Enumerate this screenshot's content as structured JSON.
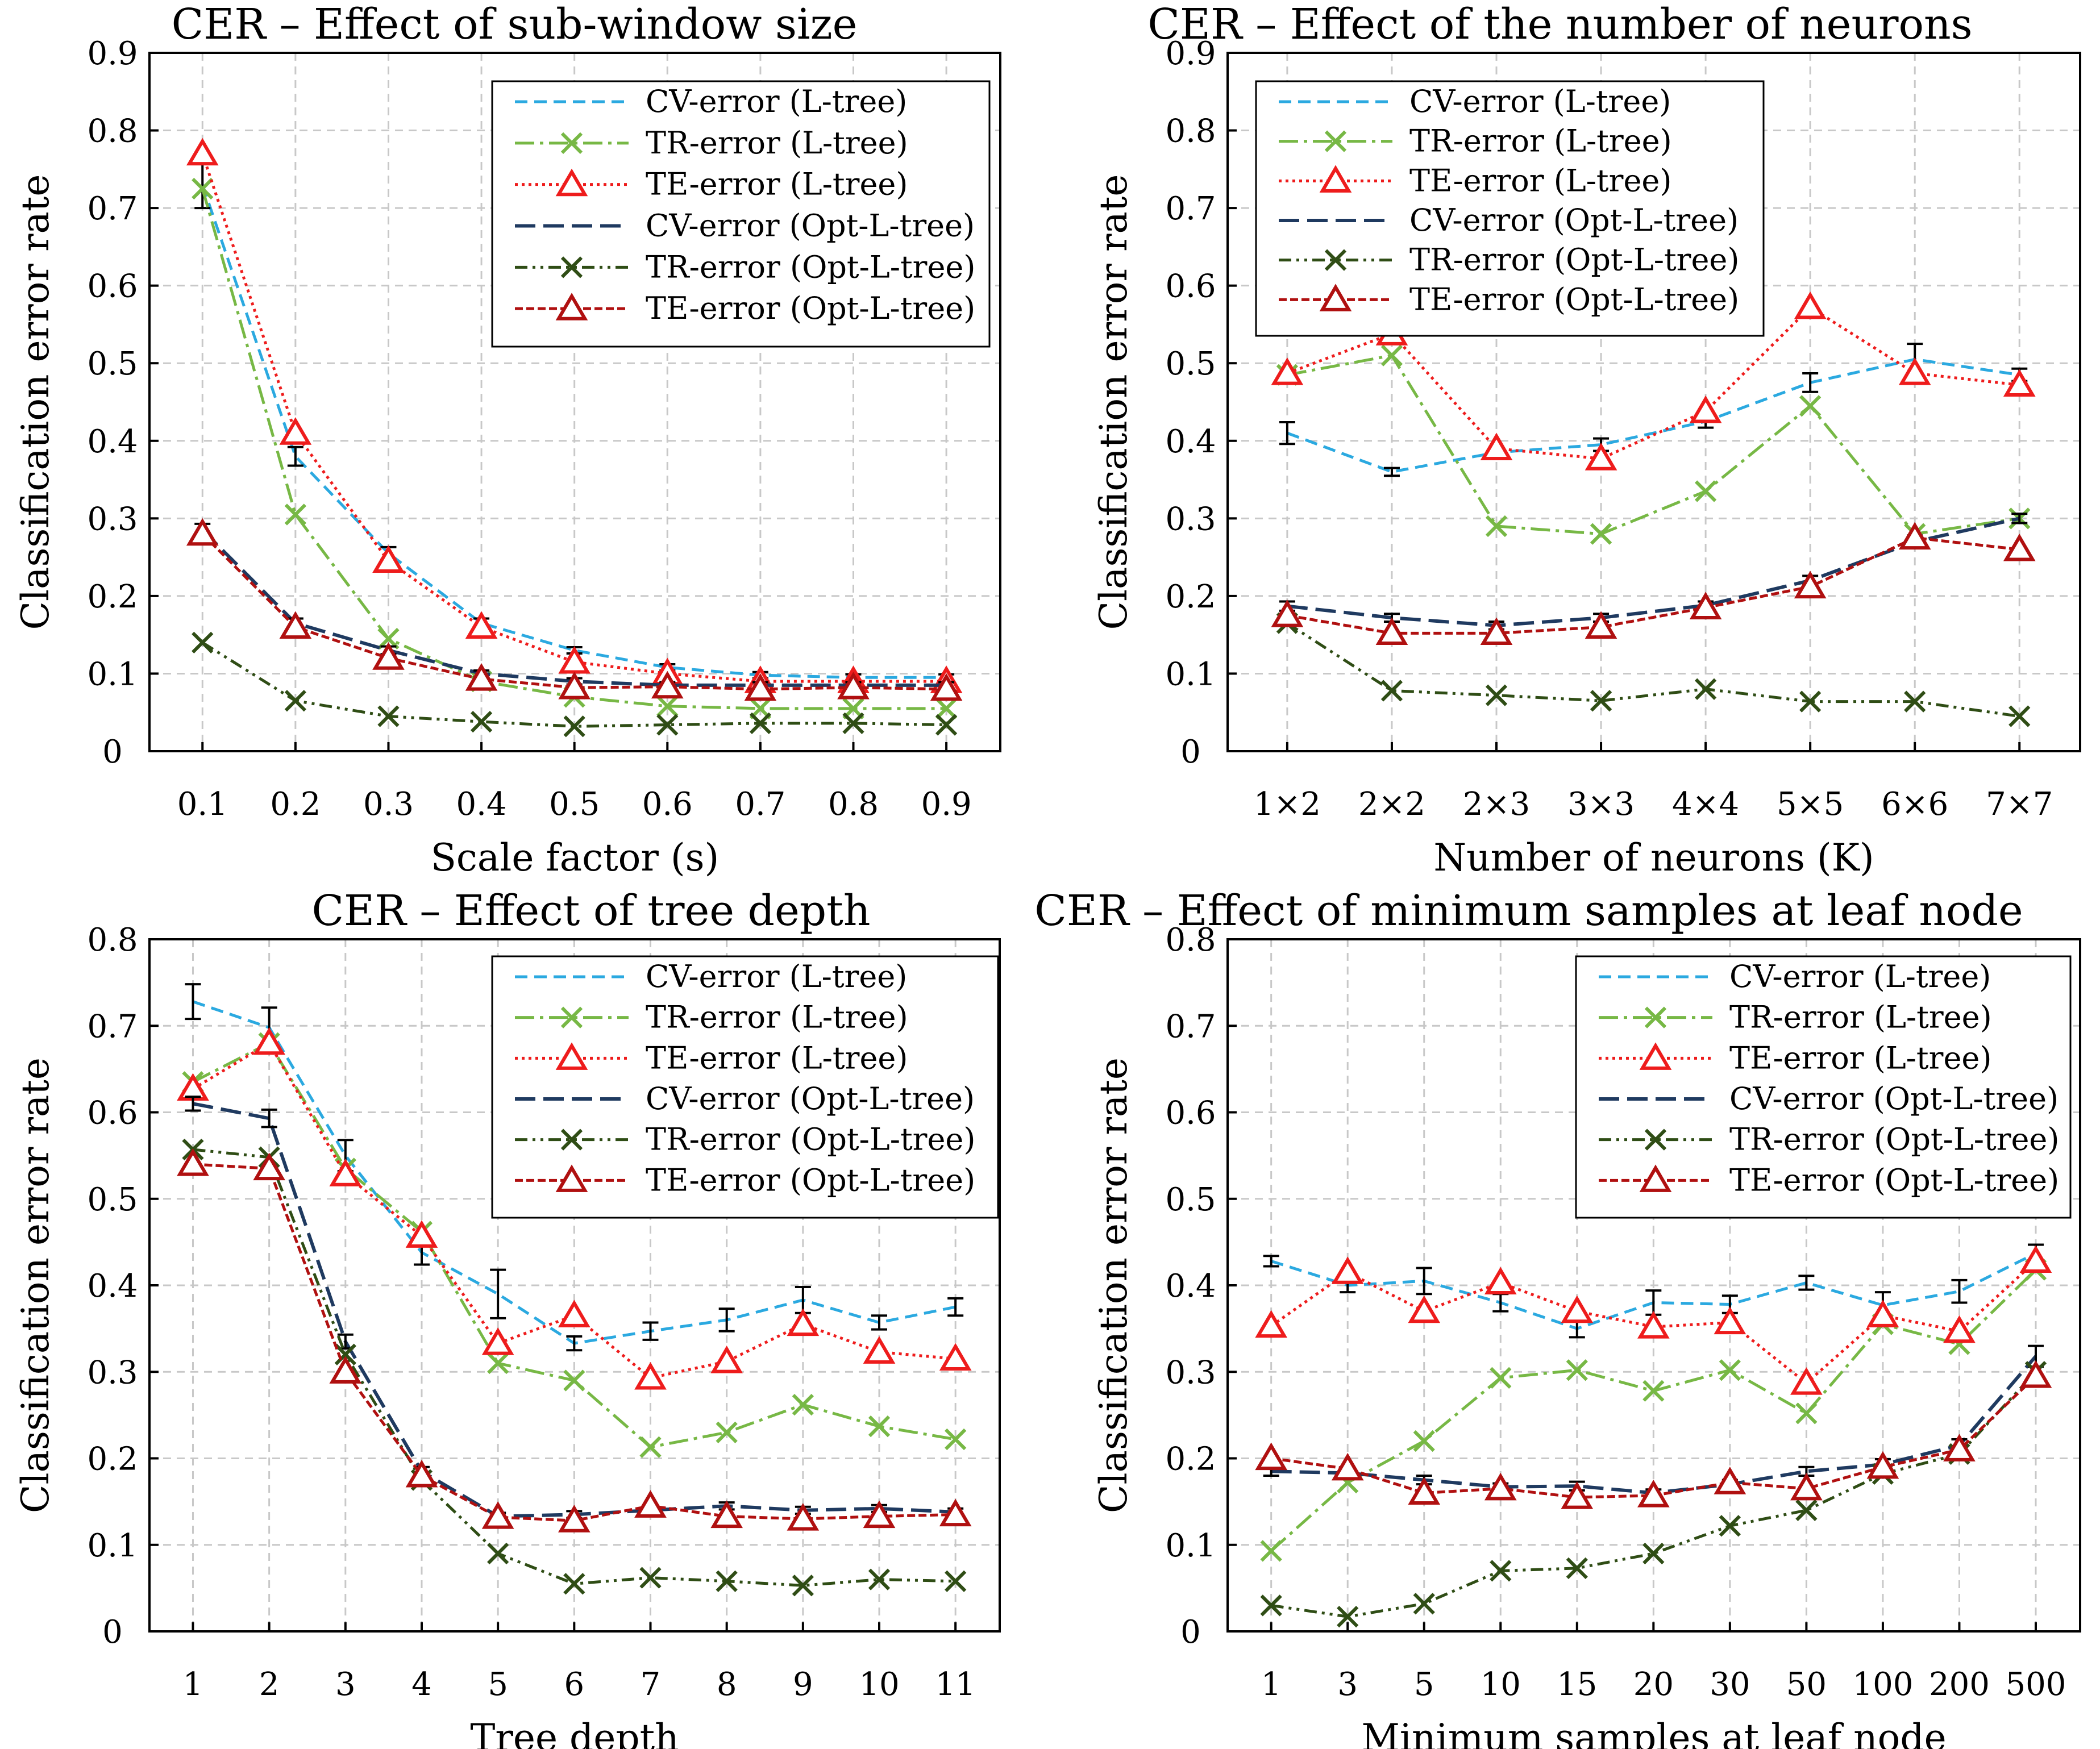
{
  "colors": {
    "cv_ltree": "#2ba9e0",
    "tr_ltree": "#77b845",
    "te_ltree": "#ee1c1c",
    "cv_opt": "#1f3a60",
    "tr_opt": "#2f4d15",
    "te_opt": "#b01010",
    "errorbar": "#000000"
  },
  "legend_labels": [
    "CV-error (L-tree)",
    "TR-error (L-tree)",
    "TE-error (L-tree)",
    "CV-error (Opt-L-tree)",
    "TR-error (Opt-L-tree)",
    "TE-error (Opt-L-tree)"
  ],
  "chart_data": [
    {
      "type": "line",
      "title": "CER – Effect of sub-window size",
      "xlabel": "Scale factor (s)",
      "ylabel": "Classification error rate",
      "categories": [
        "0.1",
        "0.2",
        "0.3",
        "0.4",
        "0.5",
        "0.6",
        "0.7",
        "0.8",
        "0.9"
      ],
      "ylim": [
        0,
        0.9
      ],
      "yticks": [
        "0",
        "0.1",
        "0.2",
        "0.3",
        "0.4",
        "0.5",
        "0.6",
        "0.7",
        "0.8",
        "0.9"
      ],
      "legend_position": "top-right",
      "series": [
        {
          "name": "CV-error (L-tree)",
          "values": [
            0.73,
            0.38,
            0.255,
            0.165,
            0.13,
            0.108,
            0.098,
            0.095,
            0.095
          ],
          "errors": [
            0.03,
            0.012,
            0.008,
            0.006,
            0.004,
            0.004,
            0.004,
            0.004,
            0.004
          ]
        },
        {
          "name": "TR-error (L-tree)",
          "values": [
            0.725,
            0.305,
            0.145,
            0.09,
            0.07,
            0.058,
            0.055,
            0.055,
            0.055
          ]
        },
        {
          "name": "TE-error (L-tree)",
          "values": [
            0.77,
            0.41,
            0.245,
            0.16,
            0.115,
            0.1,
            0.09,
            0.09,
            0.09
          ]
        },
        {
          "name": "CV-error (Opt-L-tree)",
          "values": [
            0.285,
            0.165,
            0.13,
            0.1,
            0.09,
            0.085,
            0.085,
            0.085,
            0.085
          ],
          "errors": [
            0.008,
            0.006,
            0.005,
            0.004,
            0.004,
            0.004,
            0.004,
            0.004,
            0.004
          ]
        },
        {
          "name": "TR-error (Opt-L-tree)",
          "values": [
            0.14,
            0.065,
            0.045,
            0.038,
            0.032,
            0.034,
            0.036,
            0.036,
            0.034
          ]
        },
        {
          "name": "TE-error (Opt-L-tree)",
          "values": [
            0.28,
            0.16,
            0.12,
            0.093,
            0.082,
            0.083,
            0.08,
            0.082,
            0.08
          ]
        }
      ]
    },
    {
      "type": "line",
      "title": "CER – Effect of the number of neurons",
      "xlabel": "Number of neurons (K)",
      "ylabel": "Classification error rate",
      "categories": [
        "1×2",
        "2×2",
        "2×3",
        "3×3",
        "4×4",
        "5×5",
        "6×6",
        "7×7"
      ],
      "ylim": [
        0,
        0.9
      ],
      "yticks": [
        "0",
        "0.1",
        "0.2",
        "0.3",
        "0.4",
        "0.5",
        "0.6",
        "0.7",
        "0.8",
        "0.9"
      ],
      "legend_position": "top-left",
      "series": [
        {
          "name": "CV-error (L-tree)",
          "values": [
            0.41,
            0.36,
            0.385,
            0.395,
            0.425,
            0.475,
            0.505,
            0.485
          ],
          "errors": [
            0.014,
            0.005,
            0.006,
            0.008,
            0.008,
            0.012,
            0.02,
            0.008
          ]
        },
        {
          "name": "TR-error (L-tree)",
          "values": [
            0.485,
            0.51,
            0.29,
            0.28,
            0.335,
            0.445,
            0.28,
            0.3
          ]
        },
        {
          "name": "TE-error (L-tree)",
          "values": [
            0.487,
            0.538,
            0.39,
            0.377,
            0.438,
            0.572,
            0.487,
            0.472
          ]
        },
        {
          "name": "CV-error (Opt-L-tree)",
          "values": [
            0.187,
            0.172,
            0.162,
            0.172,
            0.188,
            0.22,
            0.27,
            0.3
          ],
          "errors": [
            0.006,
            0.005,
            0.005,
            0.005,
            0.005,
            0.006,
            0.008,
            0.006
          ]
        },
        {
          "name": "TR-error (Opt-L-tree)",
          "values": [
            0.165,
            0.078,
            0.072,
            0.065,
            0.08,
            0.064,
            0.064,
            0.045
          ]
        },
        {
          "name": "TE-error (Opt-L-tree)",
          "values": [
            0.175,
            0.152,
            0.152,
            0.16,
            0.185,
            0.212,
            0.275,
            0.26
          ]
        }
      ]
    },
    {
      "type": "line",
      "title": "CER – Effect of tree depth",
      "xlabel": "Tree depth",
      "ylabel": "Classification error rate",
      "categories": [
        "1",
        "2",
        "3",
        "4",
        "5",
        "6",
        "7",
        "8",
        "9",
        "10",
        "11"
      ],
      "ylim": [
        0,
        0.8
      ],
      "yticks": [
        "0",
        "0.1",
        "0.2",
        "0.3",
        "0.4",
        "0.5",
        "0.6",
        "0.7",
        "0.8"
      ],
      "legend_position": "top-right",
      "series": [
        {
          "name": "CV-error (L-tree)",
          "values": [
            0.728,
            0.698,
            0.55,
            0.438,
            0.39,
            0.333,
            0.347,
            0.36,
            0.383,
            0.357,
            0.375
          ],
          "errors": [
            0.02,
            0.023,
            0.018,
            0.014,
            0.028,
            0.008,
            0.01,
            0.013,
            0.015,
            0.008,
            0.01
          ]
        },
        {
          "name": "TR-error (L-tree)",
          "values": [
            0.635,
            0.68,
            0.535,
            0.462,
            0.31,
            0.29,
            0.213,
            0.23,
            0.262,
            0.237,
            0.222
          ]
        },
        {
          "name": "TE-error (L-tree)",
          "values": [
            0.627,
            0.68,
            0.528,
            0.457,
            0.333,
            0.365,
            0.293,
            0.312,
            0.355,
            0.323,
            0.315
          ]
        },
        {
          "name": "CV-error (Opt-L-tree)",
          "values": [
            0.61,
            0.593,
            0.335,
            0.185,
            0.133,
            0.135,
            0.14,
            0.145,
            0.14,
            0.142,
            0.138
          ],
          "errors": [
            0.008,
            0.01,
            0.008,
            0.005,
            0.004,
            0.004,
            0.004,
            0.004,
            0.004,
            0.004,
            0.004
          ]
        },
        {
          "name": "TR-error (Opt-L-tree)",
          "values": [
            0.557,
            0.548,
            0.32,
            0.175,
            0.09,
            0.055,
            0.062,
            0.058,
            0.053,
            0.06,
            0.058
          ]
        },
        {
          "name": "TE-error (Opt-L-tree)",
          "values": [
            0.54,
            0.535,
            0.3,
            0.18,
            0.132,
            0.128,
            0.145,
            0.133,
            0.13,
            0.133,
            0.135
          ]
        }
      ]
    },
    {
      "type": "line",
      "title": "CER – Effect of minimum samples at leaf node",
      "xlabel": "Minimum samples at leaf node",
      "ylabel": "Classification error rate",
      "categories": [
        "1",
        "3",
        "5",
        "10",
        "15",
        "20",
        "30",
        "50",
        "100",
        "200",
        "500"
      ],
      "ylim": [
        0,
        0.8
      ],
      "yticks": [
        "0",
        "0.1",
        "0.2",
        "0.3",
        "0.4",
        "0.5",
        "0.6",
        "0.7",
        "0.8"
      ],
      "legend_position": "top-right",
      "series": [
        {
          "name": "CV-error (L-tree)",
          "values": [
            0.428,
            0.4,
            0.405,
            0.38,
            0.35,
            0.38,
            0.378,
            0.403,
            0.377,
            0.393,
            0.437
          ],
          "errors": [
            0.006,
            0.008,
            0.015,
            0.01,
            0.01,
            0.014,
            0.01,
            0.008,
            0.015,
            0.013,
            0.01
          ]
        },
        {
          "name": "TR-error (L-tree)",
          "values": [
            0.093,
            0.172,
            0.22,
            0.293,
            0.302,
            0.278,
            0.302,
            0.252,
            0.355,
            0.332,
            0.418
          ]
        },
        {
          "name": "TE-error (L-tree)",
          "values": [
            0.353,
            0.415,
            0.37,
            0.403,
            0.37,
            0.352,
            0.357,
            0.287,
            0.365,
            0.347,
            0.428
          ]
        },
        {
          "name": "CV-error (Opt-L-tree)",
          "values": [
            0.185,
            0.183,
            0.175,
            0.167,
            0.168,
            0.16,
            0.17,
            0.185,
            0.193,
            0.215,
            0.318
          ],
          "errors": [
            0.005,
            0.004,
            0.005,
            0.004,
            0.005,
            0.004,
            0.005,
            0.005,
            0.006,
            0.007,
            0.012
          ]
        },
        {
          "name": "TR-error (Opt-L-tree)",
          "values": [
            0.03,
            0.017,
            0.032,
            0.07,
            0.073,
            0.09,
            0.122,
            0.14,
            0.182,
            0.205,
            0.3
          ]
        },
        {
          "name": "TE-error (Opt-L-tree)",
          "values": [
            0.2,
            0.188,
            0.16,
            0.165,
            0.155,
            0.157,
            0.172,
            0.165,
            0.19,
            0.21,
            0.295
          ]
        }
      ]
    }
  ]
}
